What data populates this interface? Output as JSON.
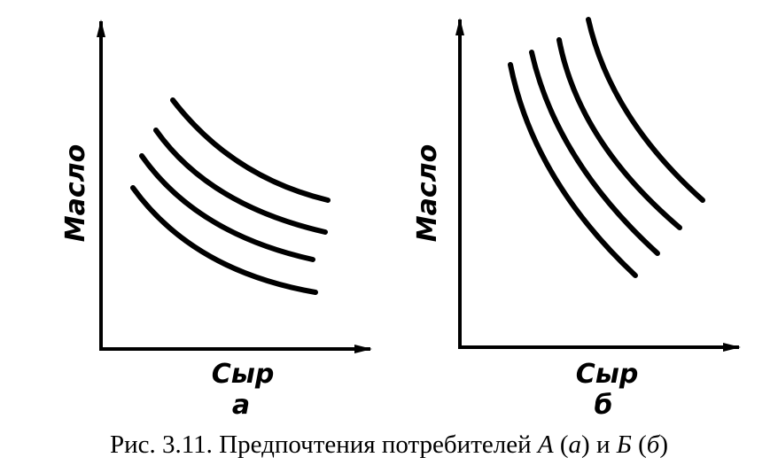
{
  "panels": [
    {
      "id": "a",
      "ylabel": "Масло",
      "xlabel": "Сыр",
      "panel_label": "а"
    },
    {
      "id": "b",
      "ylabel": "Масло",
      "xlabel": "Сыр",
      "panel_label": "б"
    }
  ],
  "caption": {
    "prefix": "Рис. 3.11. Предпочтения потребителей ",
    "a_letter": "А",
    "a_paren": "(а)",
    "conj": " и ",
    "b_letter": "Б",
    "b_paren": "(б)"
  }
}
